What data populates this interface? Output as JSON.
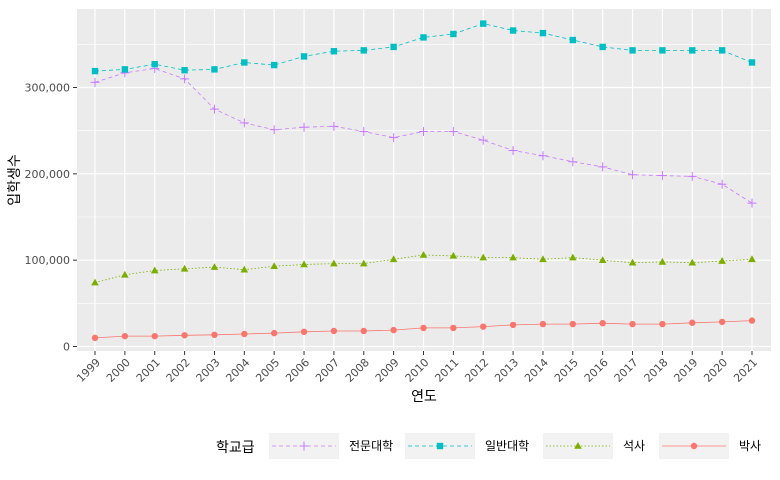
{
  "chart_data": {
    "type": "line",
    "xlabel": "연도",
    "ylabel": "입학생수",
    "x": [
      "1999",
      "2000",
      "2001",
      "2002",
      "2003",
      "2004",
      "2005",
      "2006",
      "2007",
      "2008",
      "2009",
      "2010",
      "2011",
      "2012",
      "2013",
      "2014",
      "2015",
      "2016",
      "2017",
      "2018",
      "2019",
      "2020",
      "2021"
    ],
    "ylim": [
      -5000,
      390000
    ],
    "yticks": [
      0,
      100000,
      200000,
      300000
    ],
    "ytick_labels": [
      "0",
      "100,000",
      "200,000",
      "300,000"
    ],
    "legend": {
      "title": "학교급",
      "position": "bottom"
    },
    "grid": true,
    "series": [
      {
        "name": "전문대학",
        "color": "#c77cff",
        "marker": "plus",
        "line": "dashed",
        "values": [
          306000,
          317000,
          322000,
          310000,
          275000,
          259000,
          251000,
          254000,
          255000,
          249000,
          242000,
          249000,
          249000,
          239000,
          227000,
          221000,
          214000,
          208000,
          199000,
          198000,
          197000,
          188000,
          166000
        ]
      },
      {
        "name": "일반대학",
        "color": "#00bfc4",
        "marker": "square",
        "line": "dashed",
        "values": [
          319000,
          321000,
          327000,
          320000,
          321000,
          329000,
          326000,
          336000,
          342000,
          343000,
          347000,
          358000,
          362000,
          374000,
          366000,
          363000,
          355000,
          347000,
          343000,
          343000,
          343000,
          343000,
          329000
        ]
      },
      {
        "name": "석사",
        "color": "#7cae00",
        "marker": "triangle",
        "line": "dotted",
        "values": [
          74000,
          83000,
          88000,
          90000,
          92000,
          89000,
          93000,
          95000,
          96000,
          96000,
          101000,
          106000,
          105000,
          103000,
          103000,
          101000,
          103000,
          100000,
          97000,
          98000,
          97000,
          99000,
          101000
        ]
      },
      {
        "name": "박사",
        "color": "#f8766d",
        "marker": "circle",
        "line": "solid",
        "values": [
          10000,
          12000,
          12000,
          13000,
          13500,
          14500,
          15500,
          17000,
          18000,
          18000,
          19000,
          21500,
          21500,
          23000,
          25000,
          26000,
          26000,
          27000,
          26000,
          26000,
          27500,
          28500,
          30000
        ]
      }
    ]
  }
}
